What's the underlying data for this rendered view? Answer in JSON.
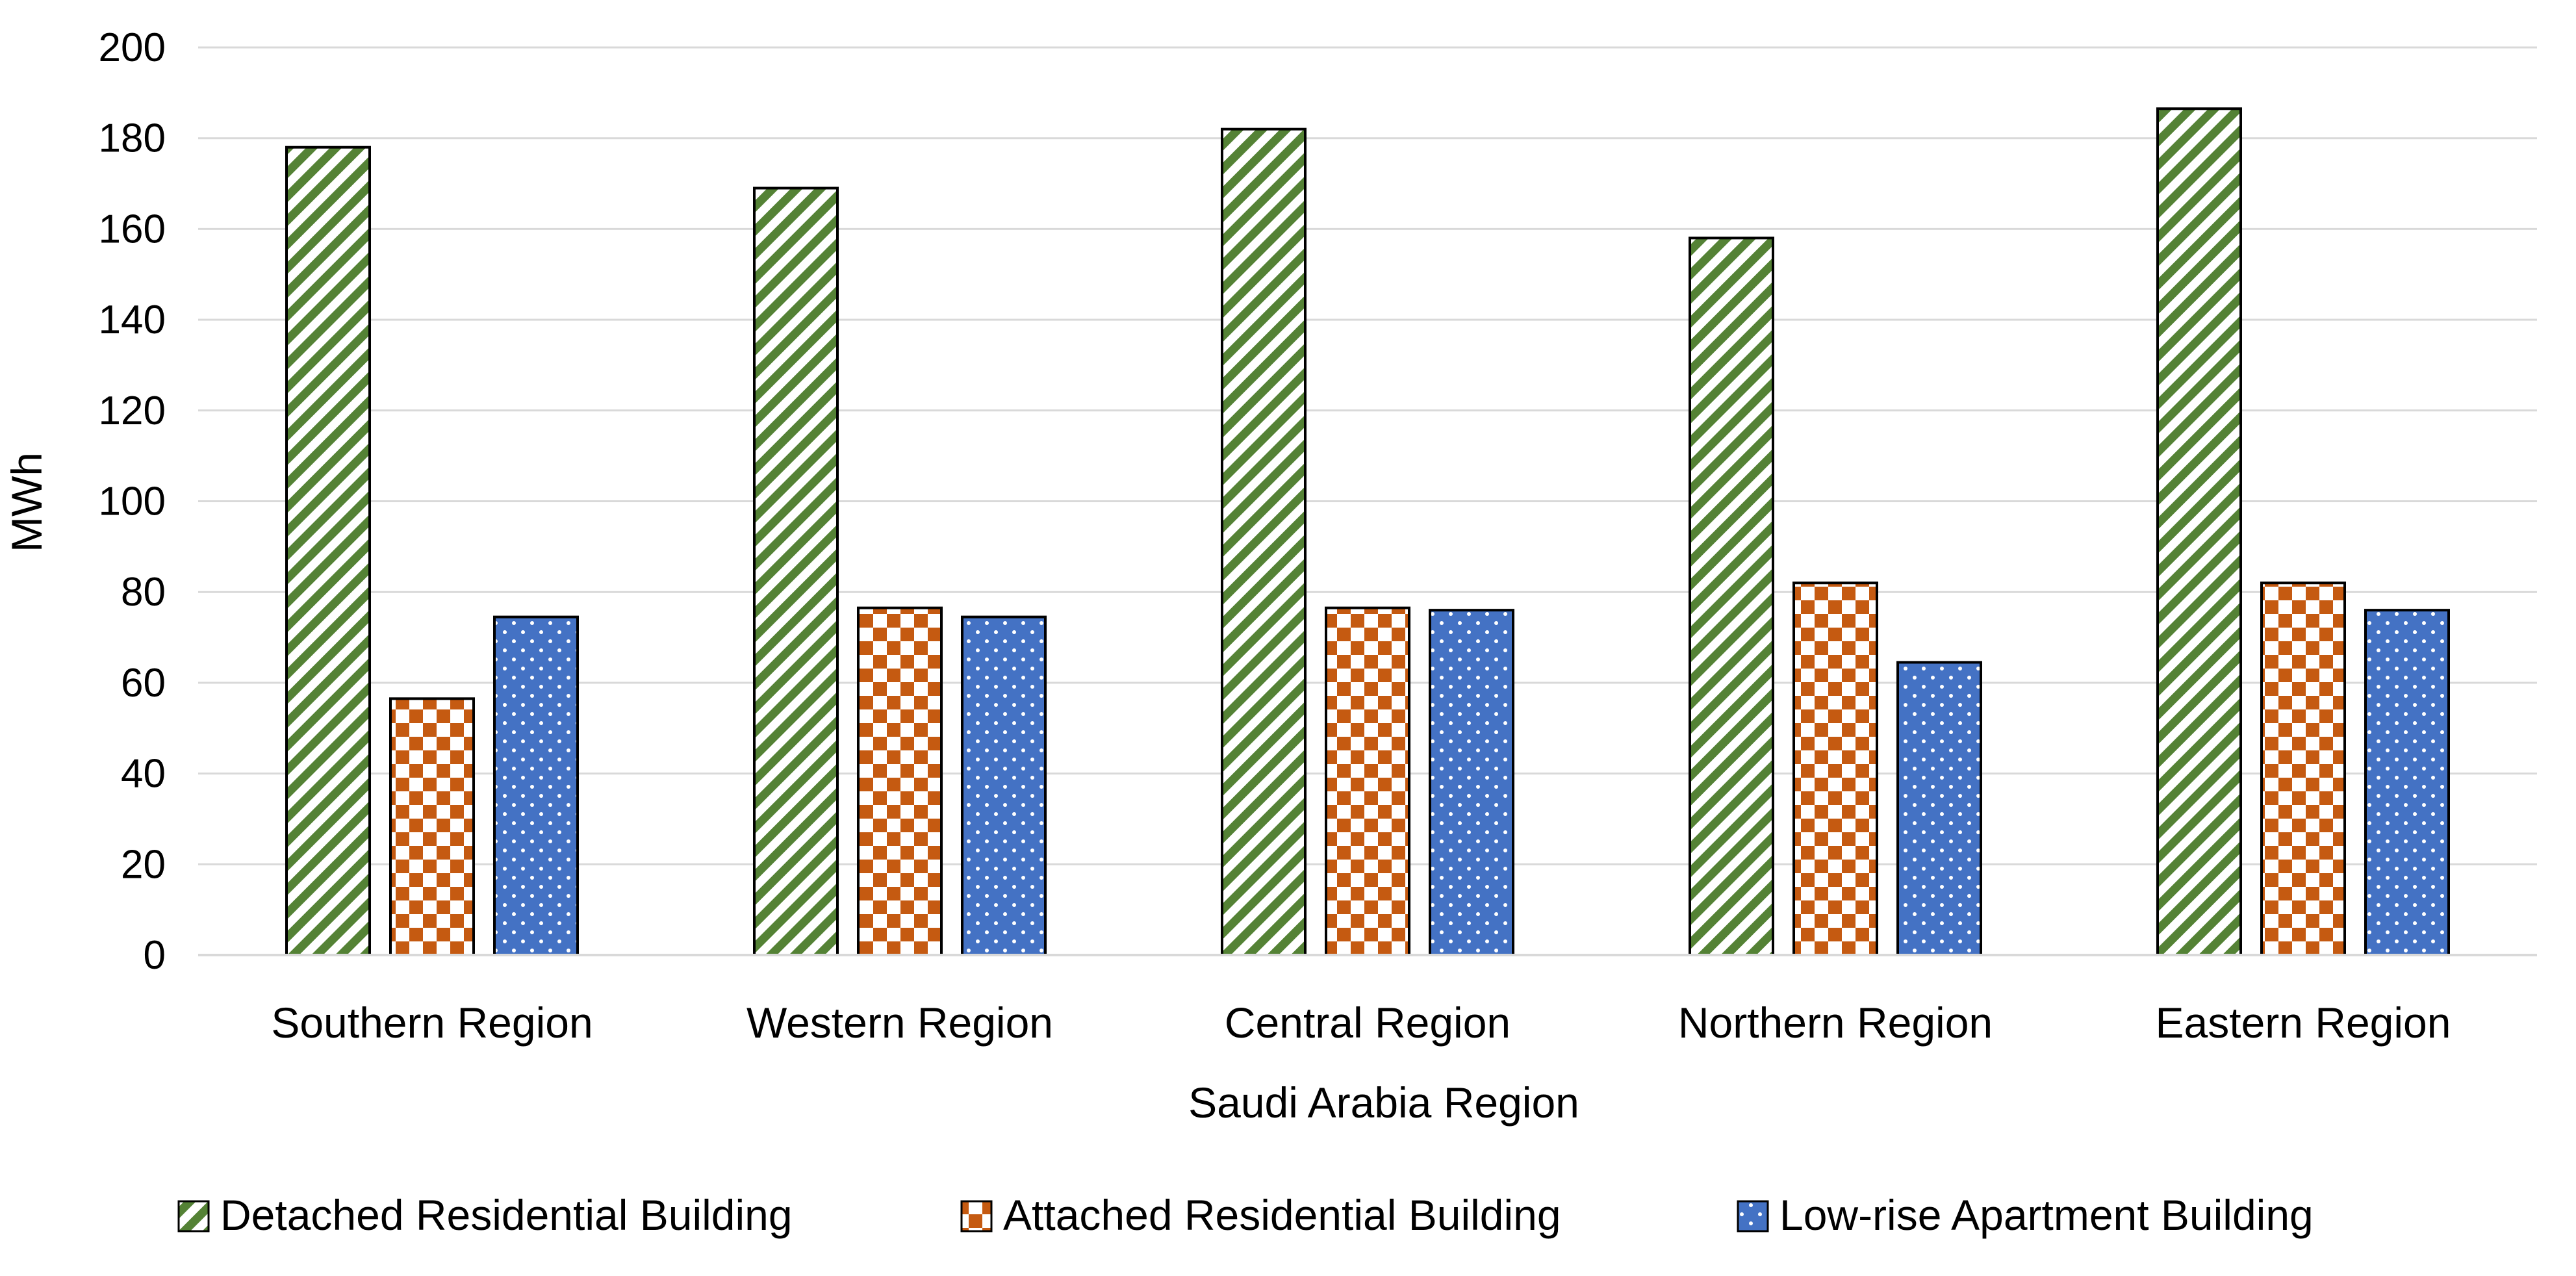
{
  "chart_data": {
    "type": "bar",
    "title": "",
    "xlabel": "Saudi Arabia Region",
    "ylabel": "MWh",
    "ylim": [
      0,
      200
    ],
    "yticks": [
      0,
      20,
      40,
      60,
      80,
      100,
      120,
      140,
      160,
      180,
      200
    ],
    "grid": true,
    "legend_position": "bottom",
    "categories": [
      "Southern Region",
      "Western Region",
      "Central Region",
      "Northern Region",
      "Eastern Region"
    ],
    "series": [
      {
        "name": "Detached Residential Building",
        "color": "#548235",
        "pattern": "diagonal-stripes",
        "values": [
          178,
          169,
          182,
          158,
          186.5
        ]
      },
      {
        "name": "Attached Residential Building",
        "color": "#C55A11",
        "pattern": "checkerboard",
        "values": [
          56.5,
          76.5,
          76.5,
          82,
          82
        ]
      },
      {
        "name": "Low-rise Apartment Building",
        "color": "#4472C4",
        "pattern": "dots",
        "values": [
          74.5,
          74.5,
          76,
          64.5,
          76
        ]
      }
    ]
  }
}
